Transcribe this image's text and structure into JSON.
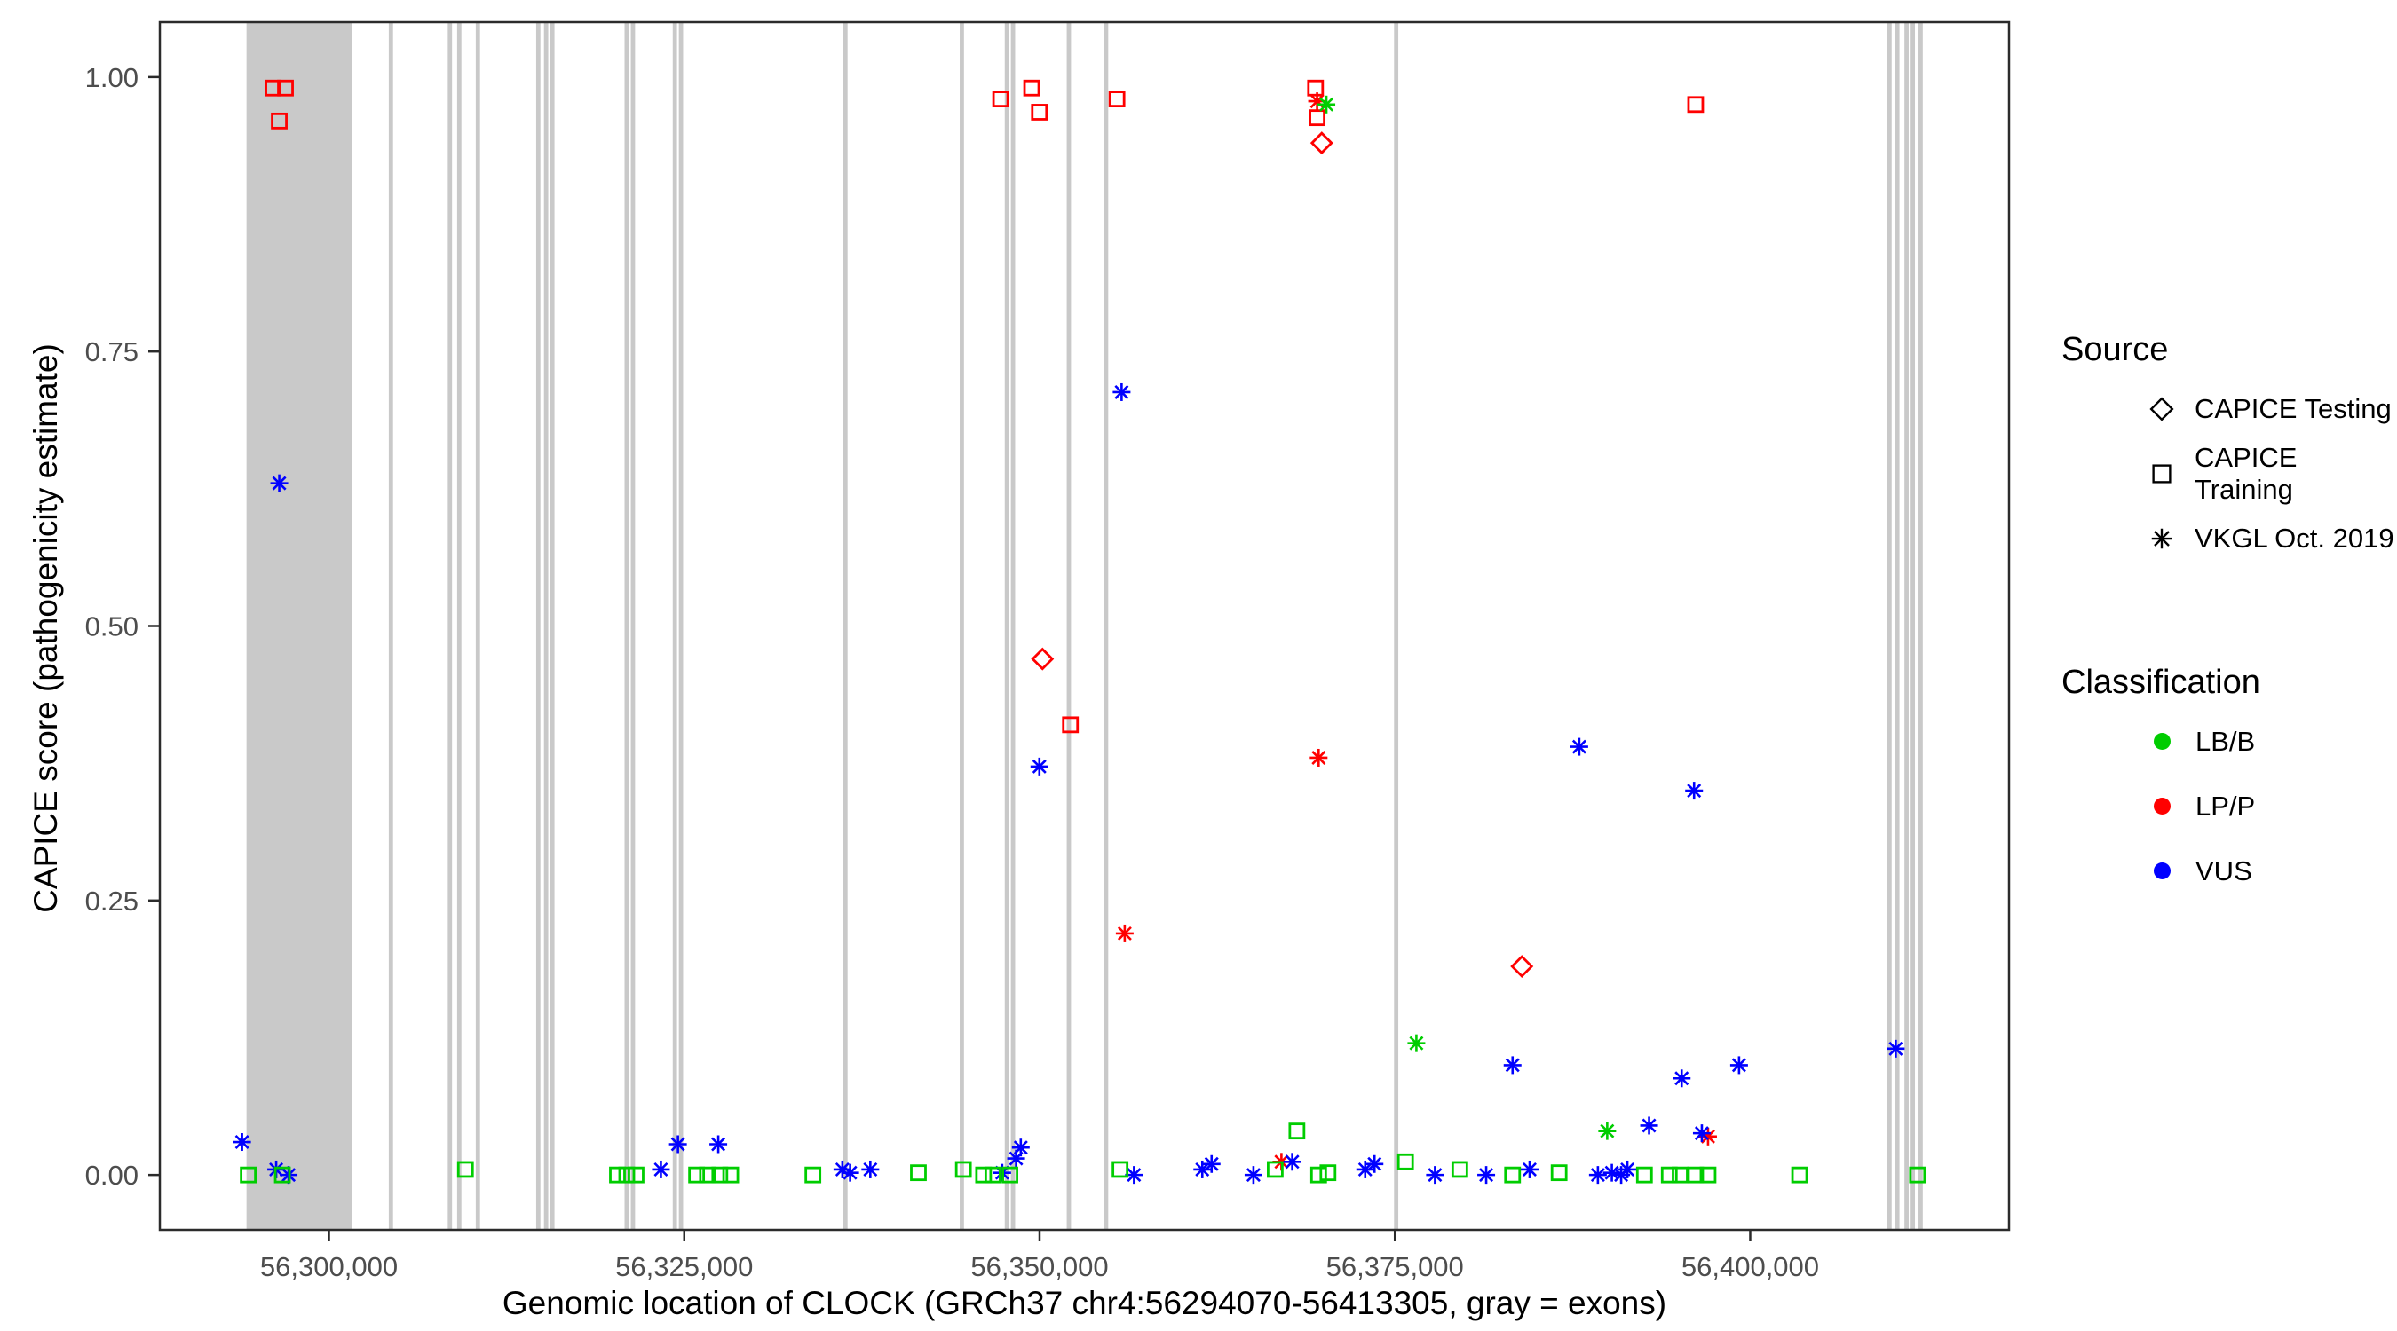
{
  "chart_data": {
    "type": "scatter",
    "title": "",
    "xlabel": "Genomic location of CLOCK (GRCh37 chr4:56294070-56413305, gray = exons)",
    "ylabel": "CAPICE score (pathogenicity estimate)",
    "x_domain": [
      56288100,
      56418210
    ],
    "y_domain": [
      -0.05,
      1.05
    ],
    "x_ticks": [
      {
        "value": 56300000,
        "label": "56,300,000"
      },
      {
        "value": 56325000,
        "label": "56,325,000"
      },
      {
        "value": 56350000,
        "label": "56,350,000"
      },
      {
        "value": 56375000,
        "label": "56,375,000"
      },
      {
        "value": 56400000,
        "label": "56,400,000"
      }
    ],
    "y_ticks": [
      {
        "value": 0.0,
        "label": "0.00"
      },
      {
        "value": 0.25,
        "label": "0.25"
      },
      {
        "value": 0.5,
        "label": "0.50"
      },
      {
        "value": 0.75,
        "label": "0.75"
      },
      {
        "value": 1.0,
        "label": "1.00"
      }
    ],
    "exon_color": "#c9c9c9",
    "exons": [
      [
        56294200,
        56301640
      ],
      [
        56304210,
        56304510
      ],
      [
        56308360,
        56308660
      ],
      [
        56309020,
        56309320
      ],
      [
        56310330,
        56310630
      ],
      [
        56314580,
        56314880
      ],
      [
        56315130,
        56315430
      ],
      [
        56315570,
        56315870
      ],
      [
        56320800,
        56321100
      ],
      [
        56321240,
        56321540
      ],
      [
        56324190,
        56324490
      ],
      [
        56324620,
        56324920
      ],
      [
        56336190,
        56336490
      ],
      [
        56344380,
        56344680
      ],
      [
        56347550,
        56347850
      ],
      [
        56347980,
        56348280
      ],
      [
        56351910,
        56352210
      ],
      [
        56354530,
        56354830
      ],
      [
        56374940,
        56375240
      ],
      [
        56409650,
        56409950
      ],
      [
        56410200,
        56410500
      ],
      [
        56410850,
        56411150
      ],
      [
        56411290,
        56411590
      ],
      [
        56411840,
        56412140
      ]
    ],
    "source_shapes": {
      "testing": "diamond",
      "training": "square",
      "vkgl": "asterisk"
    },
    "class_colors": {
      "LB/B": "#00cd00",
      "LP/P": "#ff0000",
      "VUS": "#0000ff"
    },
    "points_format": [
      "genomic_position",
      "capice_score",
      "source",
      "classification"
    ],
    "points": [
      [
        56296068,
        0.99,
        "training",
        "LP/P"
      ],
      [
        56296941,
        0.99,
        "training",
        "LP/P"
      ],
      [
        56296505,
        0.96,
        "training",
        "LP/P"
      ],
      [
        56347258,
        0.98,
        "training",
        "LP/P"
      ],
      [
        56349441,
        0.99,
        "training",
        "LP/P"
      ],
      [
        56349987,
        0.968,
        "training",
        "LP/P"
      ],
      [
        56352170,
        0.41,
        "training",
        "LP/P"
      ],
      [
        56355445,
        0.98,
        "training",
        "LP/P"
      ],
      [
        56369415,
        0.99,
        "training",
        "LP/P"
      ],
      [
        56369525,
        0.963,
        "training",
        "LP/P"
      ],
      [
        56396158,
        0.975,
        "training",
        "LP/P"
      ],
      [
        56350205,
        0.47,
        "testing",
        "LP/P"
      ],
      [
        56369852,
        0.94,
        "testing",
        "LP/P"
      ],
      [
        56383933,
        0.19,
        "testing",
        "LP/P"
      ],
      [
        56355990,
        0.22,
        "vkgl",
        "LP/P"
      ],
      [
        56369525,
        0.978,
        "vkgl",
        "LP/P"
      ],
      [
        56369634,
        0.38,
        "vkgl",
        "LP/P"
      ],
      [
        56367015,
        0.012,
        "vkgl",
        "LP/P"
      ],
      [
        56397032,
        0.035,
        "vkgl",
        "LP/P"
      ],
      [
        56370180,
        0.975,
        "vkgl",
        "LB/B"
      ],
      [
        56376511,
        0.12,
        "vkgl",
        "LB/B"
      ],
      [
        56389937,
        0.04,
        "vkgl",
        "LB/B"
      ],
      [
        56296505,
        0.63,
        "vkgl",
        "VUS"
      ],
      [
        56293885,
        0.03,
        "vkgl",
        "VUS"
      ],
      [
        56296287,
        0.005,
        "vkgl",
        "VUS"
      ],
      [
        56297160,
        0.0,
        "vkgl",
        "VUS"
      ],
      [
        56323356,
        0.005,
        "vkgl",
        "VUS"
      ],
      [
        56324556,
        0.028,
        "vkgl",
        "VUS"
      ],
      [
        56327394,
        0.028,
        "vkgl",
        "VUS"
      ],
      [
        56336126,
        0.005,
        "vkgl",
        "VUS"
      ],
      [
        56336672,
        0.002,
        "vkgl",
        "VUS"
      ],
      [
        56338091,
        0.005,
        "vkgl",
        "VUS"
      ],
      [
        56347368,
        0.002,
        "vkgl",
        "VUS"
      ],
      [
        56348350,
        0.015,
        "vkgl",
        "VUS"
      ],
      [
        56348677,
        0.025,
        "vkgl",
        "VUS"
      ],
      [
        56349987,
        0.372,
        "vkgl",
        "VUS"
      ],
      [
        56355772,
        0.713,
        "vkgl",
        "VUS"
      ],
      [
        56356645,
        0.0,
        "vkgl",
        "VUS"
      ],
      [
        56361448,
        0.005,
        "vkgl",
        "VUS"
      ],
      [
        56362103,
        0.01,
        "vkgl",
        "VUS"
      ],
      [
        56365050,
        0.0,
        "vkgl",
        "VUS"
      ],
      [
        56367779,
        0.012,
        "vkgl",
        "VUS"
      ],
      [
        56372909,
        0.005,
        "vkgl",
        "VUS"
      ],
      [
        56373564,
        0.01,
        "vkgl",
        "VUS"
      ],
      [
        56377821,
        0.0,
        "vkgl",
        "VUS"
      ],
      [
        56381423,
        0.0,
        "vkgl",
        "VUS"
      ],
      [
        56383278,
        0.1,
        "vkgl",
        "VUS"
      ],
      [
        56384479,
        0.005,
        "vkgl",
        "VUS"
      ],
      [
        56387972,
        0.39,
        "vkgl",
        "VUS"
      ],
      [
        56389282,
        0.0,
        "vkgl",
        "VUS"
      ],
      [
        56390264,
        0.002,
        "vkgl",
        "VUS"
      ],
      [
        56390919,
        0.0,
        "vkgl",
        "VUS"
      ],
      [
        56391356,
        0.005,
        "vkgl",
        "VUS"
      ],
      [
        56392884,
        0.045,
        "vkgl",
        "VUS"
      ],
      [
        56395176,
        0.088,
        "vkgl",
        "VUS"
      ],
      [
        56396049,
        0.35,
        "vkgl",
        "VUS"
      ],
      [
        56396595,
        0.038,
        "vkgl",
        "VUS"
      ],
      [
        56399215,
        0.1,
        "vkgl",
        "VUS"
      ],
      [
        56410239,
        0.115,
        "vkgl",
        "VUS"
      ],
      [
        56294322,
        0.0,
        "training",
        "LB/B"
      ],
      [
        56296723,
        0.0,
        "training",
        "LB/B"
      ],
      [
        56309603,
        0.005,
        "training",
        "LB/B"
      ],
      [
        56320299,
        0.0,
        "training",
        "LB/B"
      ],
      [
        56320954,
        0.0,
        "training",
        "LB/B"
      ],
      [
        56321609,
        0.0,
        "training",
        "LB/B"
      ],
      [
        56325866,
        0.0,
        "training",
        "LB/B"
      ],
      [
        56326630,
        0.0,
        "training",
        "LB/B"
      ],
      [
        56327503,
        0.0,
        "training",
        "LB/B"
      ],
      [
        56328267,
        0.0,
        "training",
        "LB/B"
      ],
      [
        56334052,
        0.0,
        "training",
        "LB/B"
      ],
      [
        56341474,
        0.002,
        "training",
        "LB/B"
      ],
      [
        56344639,
        0.005,
        "training",
        "LB/B"
      ],
      [
        56346058,
        0.0,
        "training",
        "LB/B"
      ],
      [
        56346713,
        0.0,
        "training",
        "LB/B"
      ],
      [
        56347913,
        0.0,
        "training",
        "LB/B"
      ],
      [
        56355663,
        0.005,
        "training",
        "LB/B"
      ],
      [
        56366578,
        0.005,
        "training",
        "LB/B"
      ],
      [
        56368106,
        0.04,
        "training",
        "LB/B"
      ],
      [
        56369634,
        0.0,
        "training",
        "LB/B"
      ],
      [
        56370289,
        0.002,
        "training",
        "LB/B"
      ],
      [
        56375747,
        0.012,
        "training",
        "LB/B"
      ],
      [
        56379567,
        0.005,
        "training",
        "LB/B"
      ],
      [
        56383278,
        0.0,
        "training",
        "LB/B"
      ],
      [
        56386553,
        0.002,
        "training",
        "LB/B"
      ],
      [
        56392556,
        0.0,
        "training",
        "LB/B"
      ],
      [
        56394303,
        0.0,
        "training",
        "LB/B"
      ],
      [
        56395067,
        0.0,
        "training",
        "LB/B"
      ],
      [
        56396158,
        0.0,
        "training",
        "LB/B"
      ],
      [
        56397032,
        0.0,
        "training",
        "LB/B"
      ],
      [
        56403472,
        0.0,
        "training",
        "LB/B"
      ],
      [
        56411767,
        0.0,
        "training",
        "LB/B"
      ]
    ]
  },
  "legend": {
    "source_title": "Source",
    "source_items": [
      {
        "label": "CAPICE Testing",
        "shape": "diamond"
      },
      {
        "label": "CAPICE Training",
        "shape": "square"
      },
      {
        "label": "VKGL Oct. 2019",
        "shape": "asterisk"
      }
    ],
    "class_title": "Classification",
    "class_items": [
      {
        "label": "LB/B",
        "color": "#00cd00"
      },
      {
        "label": "LP/P",
        "color": "#ff0000"
      },
      {
        "label": "VUS",
        "color": "#0000ff"
      }
    ]
  }
}
